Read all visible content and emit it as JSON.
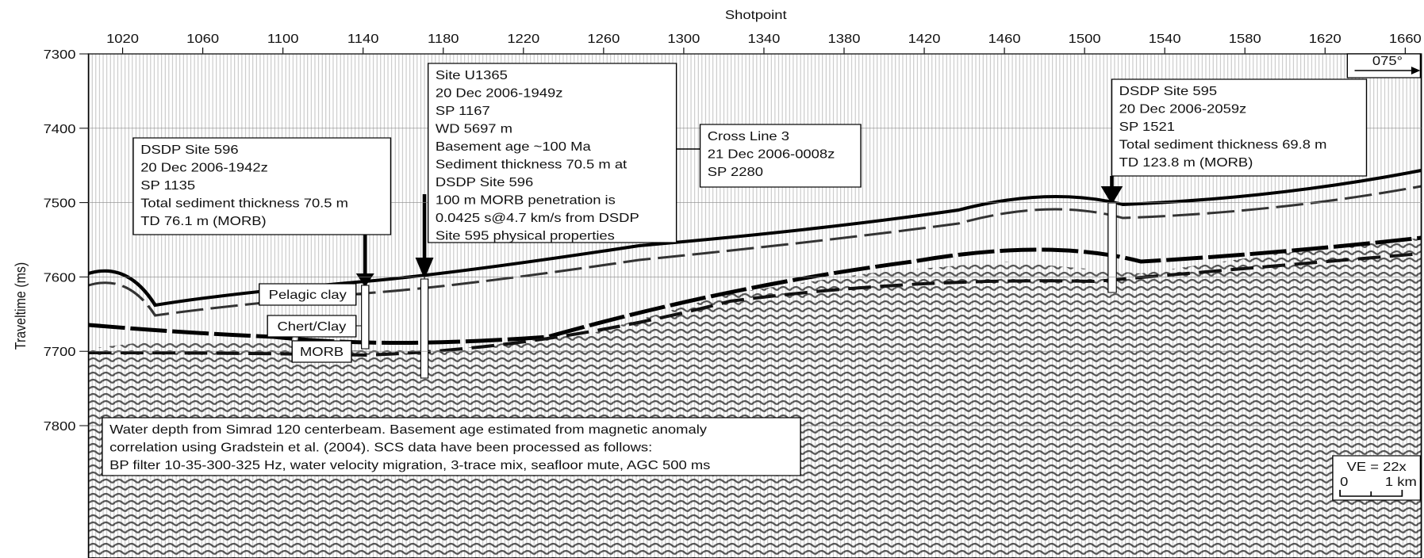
{
  "chart_data": {
    "type": "seismic-section",
    "xlabel": "Shotpoint",
    "ylabel": "Traveltime (ms)",
    "xlim": [
      1003,
      1668
    ],
    "ylim": [
      7978,
      7300
    ],
    "xticks": [
      1020,
      1060,
      1100,
      1140,
      1180,
      1220,
      1260,
      1300,
      1340,
      1380,
      1420,
      1460,
      1500,
      1540,
      1580,
      1620,
      1660
    ],
    "yticks": [
      7300,
      7400,
      7500,
      7600,
      7700,
      7800
    ],
    "annotations": [
      {
        "lines": [
          "DSDP Site 596",
          "20 Dec 2006-1942z",
          "SP 1135",
          "Total sediment thickness 70.5 m",
          "TD 76.1 m (MORB)"
        ]
      },
      {
        "lines": [
          "Site U1365",
          "20 Dec 2006-1949z",
          "SP 1167",
          "WD 5697 m",
          "Basement age ~100 Ma",
          "Sediment thickness 70.5 m at",
          "DSDP Site 596",
          "100 m MORB penetration is",
          "0.0425 s@4.7 km/s from DSDP",
          "Site 595 physical properties"
        ]
      },
      {
        "lines": [
          "Cross Line 3",
          "21 Dec 2006-0008z",
          "SP 2280"
        ]
      },
      {
        "lines": [
          "DSDP Site 595",
          "20 Dec 2006-2059z",
          "SP 1521",
          "Total sediment thickness 69.8 m",
          "TD 123.8 m (MORB)"
        ]
      },
      {
        "lines": [
          "Water depth from Simrad 120 centerbeam. Basement age estimated from magnetic anomaly",
          "correlation using Gradstein et al. (2004).  SCS data have been processed as follows:",
          "BP filter 10-35-300-325 Hz, water velocity migration, 3-trace mix, seafloor mute, AGC 500 ms"
        ]
      }
    ],
    "units": [
      "Pelagic clay",
      "Chert/Clay",
      "MORB"
    ],
    "direction": "075°",
    "scale": {
      "ve": "VE = 22x",
      "start": "0",
      "end": "1 km"
    }
  }
}
